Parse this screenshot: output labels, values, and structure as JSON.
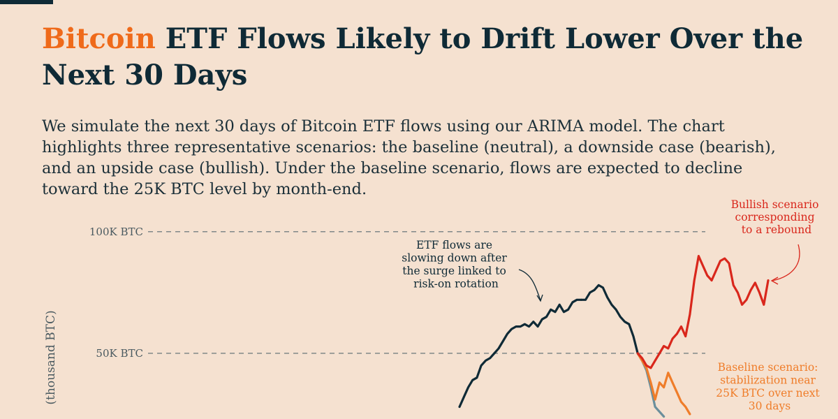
{
  "title": {
    "accent": "Bitcoin",
    "rest": " ETF Flows Likely to Drift Lower Over the Next 30 Days"
  },
  "subtitle": "We simulate the next 30 days of Bitcoin ETF flows using our ARIMA model. The chart highlights three representative scenarios: the baseline (neutral), a downside case (bearish), and an upside case (bullish). Under the baseline scenario, flows are expected to decline toward the 25K BTC level by month-end.",
  "colors": {
    "background": "#f5e1d0",
    "title_dark": "#0f2a36",
    "title_accent": "#ef6a1a",
    "historical": "#0f2a36",
    "bullish": "#d9271c",
    "baseline": "#ef7d2a",
    "bearish": "#6b8f9c",
    "grid": "#5b6b70"
  },
  "chart_data": {
    "type": "line",
    "ylabel": "(thousand BTC)",
    "ylim": [
      23,
      112
    ],
    "y_ticks": [
      {
        "value": 100,
        "label": "100K BTC"
      },
      {
        "value": 50,
        "label": "50K BTC"
      }
    ],
    "grid": "dashed horizontal lines at ticks",
    "annotations": [
      {
        "lines": [
          "ETF flows are",
          "slowing down after",
          "the surge linked to",
          "risk-on rotation"
        ],
        "color": "#0f2a36"
      },
      {
        "lines": [
          "Bullish scenario",
          "corresponding",
          "to a rebound"
        ],
        "color": "#d9271c"
      },
      {
        "lines": [
          "Baseline scenario:",
          "stabilization near",
          "25K BTC over next",
          "30 days"
        ],
        "color": "#ef7d2a"
      }
    ],
    "series": [
      {
        "key": "historical",
        "color": "#0f2a36",
        "x": [
          0,
          1,
          2,
          3,
          4,
          5,
          6,
          7,
          8,
          9,
          10,
          11,
          12,
          13,
          14,
          15,
          16,
          17,
          18,
          19,
          20,
          21,
          22,
          23,
          24,
          25,
          26,
          27,
          28
        ],
        "y": [
          28,
          32,
          36,
          39,
          40,
          45,
          47,
          48,
          50,
          52,
          55,
          58,
          60,
          61,
          61,
          62,
          61,
          63,
          61,
          64,
          65,
          68,
          67,
          70,
          67,
          68,
          71,
          72,
          72
        ]
      },
      {
        "key": "historical_peak",
        "color": "#0f2a36",
        "x": [
          28,
          29,
          30,
          31,
          32,
          33,
          34,
          35,
          36,
          37,
          38,
          39,
          40,
          41
        ],
        "y": [
          72,
          72,
          75,
          76,
          78,
          77,
          73,
          70,
          68,
          65,
          63,
          62,
          57,
          50
        ]
      },
      {
        "key": "bullish",
        "color": "#d9271c",
        "x": [
          41,
          42,
          43,
          44,
          45,
          46,
          47,
          48,
          49,
          50,
          51,
          52,
          53,
          54,
          55,
          56,
          57,
          58,
          59,
          60,
          61,
          62,
          63,
          64,
          65,
          66,
          67,
          68,
          69,
          70,
          71
        ],
        "y": [
          50,
          48,
          45,
          44,
          47,
          50,
          53,
          52,
          56,
          58,
          61,
          57,
          66,
          80,
          90,
          86,
          82,
          80,
          84,
          88,
          89,
          87,
          78,
          75,
          70,
          72,
          76,
          79,
          75,
          70,
          80
        ]
      },
      {
        "key": "baseline",
        "color": "#ef7d2a",
        "x": [
          41,
          42,
          43,
          44,
          45,
          46,
          47,
          48,
          49,
          50,
          51,
          52,
          53
        ],
        "y": [
          50,
          47,
          44,
          38,
          31,
          38,
          36,
          42,
          38,
          34,
          30,
          28,
          25
        ]
      },
      {
        "key": "bearish",
        "color": "#6b8f9c",
        "x": [
          41,
          42,
          43,
          44,
          45,
          46,
          47
        ],
        "y": [
          50,
          47,
          43,
          36,
          28,
          26,
          24
        ]
      }
    ]
  }
}
